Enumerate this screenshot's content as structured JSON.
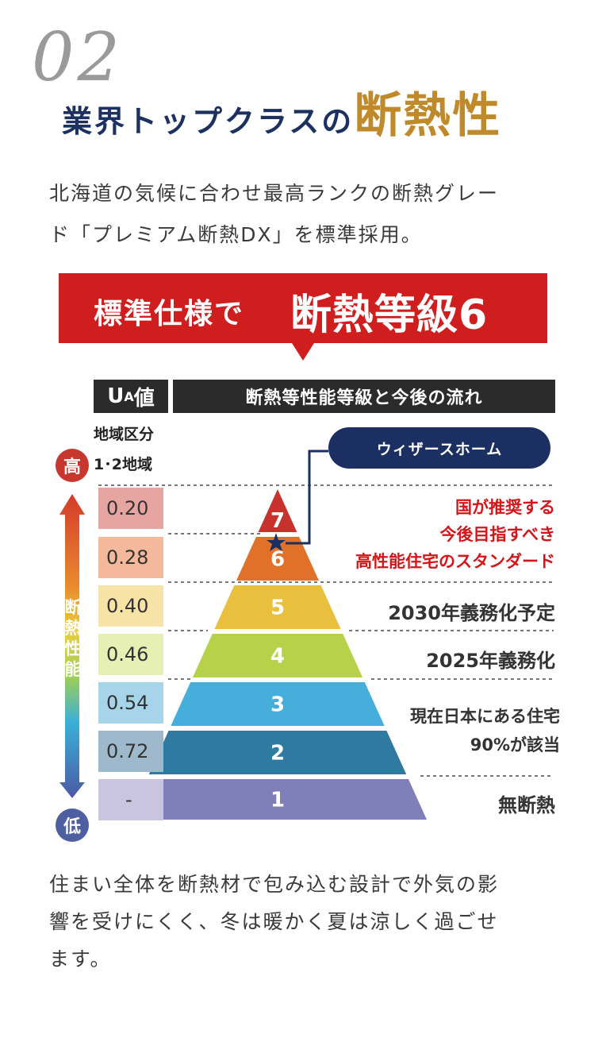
{
  "section_number": "02",
  "heading": {
    "main": "業界トップクラスの",
    "accent": "断熱性"
  },
  "intro": [
    "北海道の気候に合わせ最高ランクの断熱グレー",
    "ド「プレミアム断熱DX」を標準採用。"
  ],
  "banner": {
    "small": "標準仕様で",
    "big": "断熱等級6"
  },
  "table": {
    "ua_header": "U",
    "ua_header_sub": "A",
    "ua_header_suffix": "値",
    "trend_header": "断熱等性能等級と今後の流れ",
    "region_label": "地域区分",
    "region_value": "1･2地域",
    "high_label": "高",
    "low_label": "低",
    "performance_label": "断熱性能",
    "ua_values": [
      "0.20",
      "0.28",
      "0.40",
      "0.46",
      "0.54",
      "0.72",
      "-"
    ],
    "ua_colors": [
      "#e6a5a1",
      "#f3b99a",
      "#f7e3a6",
      "#e6efb4",
      "#a6d5ea",
      "#9fb9cc",
      "#c9c5e0"
    ]
  },
  "pyramid": {
    "levels": [
      {
        "grade": "7",
        "color": "#c8322c"
      },
      {
        "grade": "6",
        "color": "#e17029"
      },
      {
        "grade": "5",
        "color": "#e8c03d"
      },
      {
        "grade": "4",
        "color": "#b7d249"
      },
      {
        "grade": "3",
        "color": "#46aedb"
      },
      {
        "grade": "2",
        "color": "#2f7aa1"
      },
      {
        "grade": "1",
        "color": "#7f7fba"
      }
    ]
  },
  "callouts": {
    "company_badge": "ウィザースホーム",
    "recommended": [
      "国が推奨する",
      "今後目指すべき",
      "高性能住宅のスタンダード"
    ],
    "mandatory_2030": "2030年義務化予定",
    "mandatory_2025": "2025年義務化",
    "current_homes": [
      "現在日本にある住宅",
      "90%が該当"
    ],
    "no_insulation": "無断熱"
  },
  "outro": [
    "住まい全体を断熱材で包み込む設計で外気の影",
    "響を受けにくく、冬は暖かく夏は涼しく過ごせ",
    "ます。"
  ]
}
